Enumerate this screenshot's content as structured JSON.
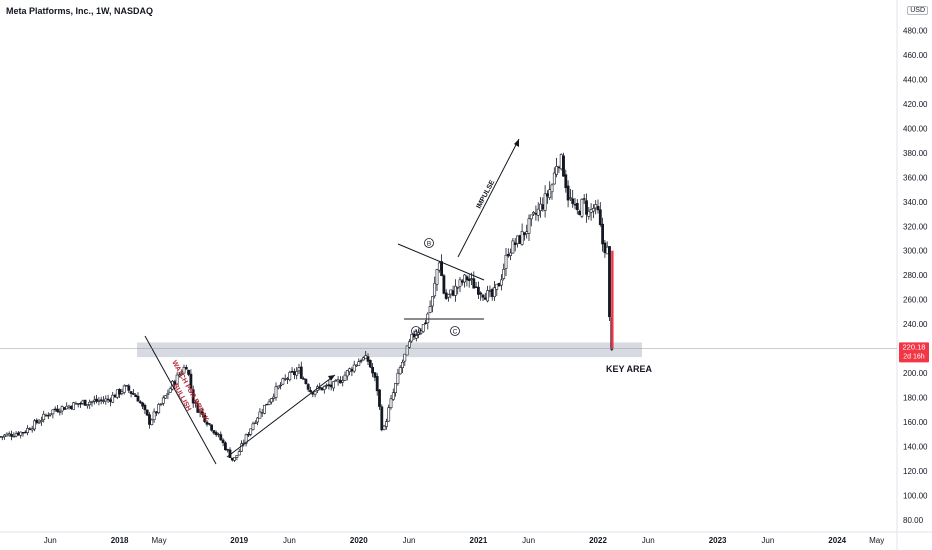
{
  "header": {
    "title": "Meta Platforms, Inc., 1W, NASDAQ",
    "currency": "USD"
  },
  "price_tag": {
    "price": "220.18",
    "countdown": "2d 16h",
    "color": "#f23645"
  },
  "annotations": {
    "watch_for_break": "WATCH FOR BREAK",
    "bullish": "BULLISH",
    "impulse": "IMPULSE",
    "key_area": "KEY AREA",
    "wave_a": "A",
    "wave_b": "B",
    "wave_c": "C"
  },
  "colors": {
    "up": "#26a69a",
    "down": "#ef5350",
    "candle": "#131722",
    "zone": "#d1d4dc",
    "annotation_text": "#b22833"
  },
  "chart_data": {
    "type": "candlestick",
    "title": "Meta Platforms, Inc., 1W, NASDAQ",
    "y_axis": {
      "side": "right",
      "ticks": [
        80,
        100,
        120,
        140,
        160,
        180,
        200,
        220,
        240,
        260,
        280,
        300,
        320,
        340,
        360,
        380,
        400,
        420,
        440,
        460,
        480
      ],
      "ylim": [
        70,
        505
      ]
    },
    "x_axis": {
      "ticks": [
        {
          "label": "Jun",
          "t": 2017.42,
          "year": false
        },
        {
          "label": "2018",
          "t": 2018.0,
          "year": true
        },
        {
          "label": "May",
          "t": 2018.33,
          "year": false
        },
        {
          "label": "2019",
          "t": 2019.0,
          "year": true
        },
        {
          "label": "Jun",
          "t": 2019.42,
          "year": false
        },
        {
          "label": "2020",
          "t": 2020.0,
          "year": true
        },
        {
          "label": "Jun",
          "t": 2020.42,
          "year": false
        },
        {
          "label": "2021",
          "t": 2021.0,
          "year": true
        },
        {
          "label": "Jun",
          "t": 2021.42,
          "year": false
        },
        {
          "label": "2022",
          "t": 2022.0,
          "year": true
        },
        {
          "label": "Jun",
          "t": 2022.42,
          "year": false
        },
        {
          "label": "2023",
          "t": 2023.0,
          "year": true
        },
        {
          "label": "Jun",
          "t": 2023.42,
          "year": false
        },
        {
          "label": "2024",
          "t": 2024.0,
          "year": true
        },
        {
          "label": "May",
          "t": 2024.33,
          "year": false
        }
      ],
      "xlim": [
        2017.0,
        2024.5
      ]
    },
    "anchors": [
      [
        2017.0,
        148
      ],
      [
        2017.2,
        152
      ],
      [
        2017.45,
        170
      ],
      [
        2017.7,
        176
      ],
      [
        2017.9,
        178
      ],
      [
        2018.05,
        188
      ],
      [
        2018.15,
        180
      ],
      [
        2018.25,
        160
      ],
      [
        2018.35,
        175
      ],
      [
        2018.45,
        192
      ],
      [
        2018.56,
        207
      ],
      [
        2018.62,
        175
      ],
      [
        2018.75,
        158
      ],
      [
        2018.85,
        145
      ],
      [
        2018.95,
        128
      ],
      [
        2019.0,
        136
      ],
      [
        2019.12,
        160
      ],
      [
        2019.3,
        185
      ],
      [
        2019.4,
        196
      ],
      [
        2019.5,
        202
      ],
      [
        2019.6,
        185
      ],
      [
        2019.7,
        188
      ],
      [
        2019.8,
        190
      ],
      [
        2019.9,
        200
      ],
      [
        2020.02,
        212
      ],
      [
        2020.08,
        210
      ],
      [
        2020.15,
        190
      ],
      [
        2020.2,
        150
      ],
      [
        2020.25,
        170
      ],
      [
        2020.35,
        205
      ],
      [
        2020.45,
        230
      ],
      [
        2020.55,
        240
      ],
      [
        2020.62,
        262
      ],
      [
        2020.67,
        295
      ],
      [
        2020.72,
        260
      ],
      [
        2020.8,
        268
      ],
      [
        2020.9,
        278
      ],
      [
        2020.96,
        272
      ],
      [
        2021.05,
        265
      ],
      [
        2021.12,
        262
      ],
      [
        2021.18,
        275
      ],
      [
        2021.25,
        300
      ],
      [
        2021.35,
        310
      ],
      [
        2021.45,
        325
      ],
      [
        2021.55,
        340
      ],
      [
        2021.62,
        355
      ],
      [
        2021.66,
        375
      ],
      [
        2021.7,
        372
      ],
      [
        2021.75,
        345
      ],
      [
        2021.82,
        330
      ],
      [
        2021.88,
        340
      ],
      [
        2021.92,
        330
      ],
      [
        2021.96,
        335
      ],
      [
        2022.0,
        330
      ],
      [
        2022.04,
        305
      ],
      [
        2022.08,
        300
      ],
      [
        2022.1,
        230
      ],
      [
        2022.12,
        220
      ]
    ]
  }
}
